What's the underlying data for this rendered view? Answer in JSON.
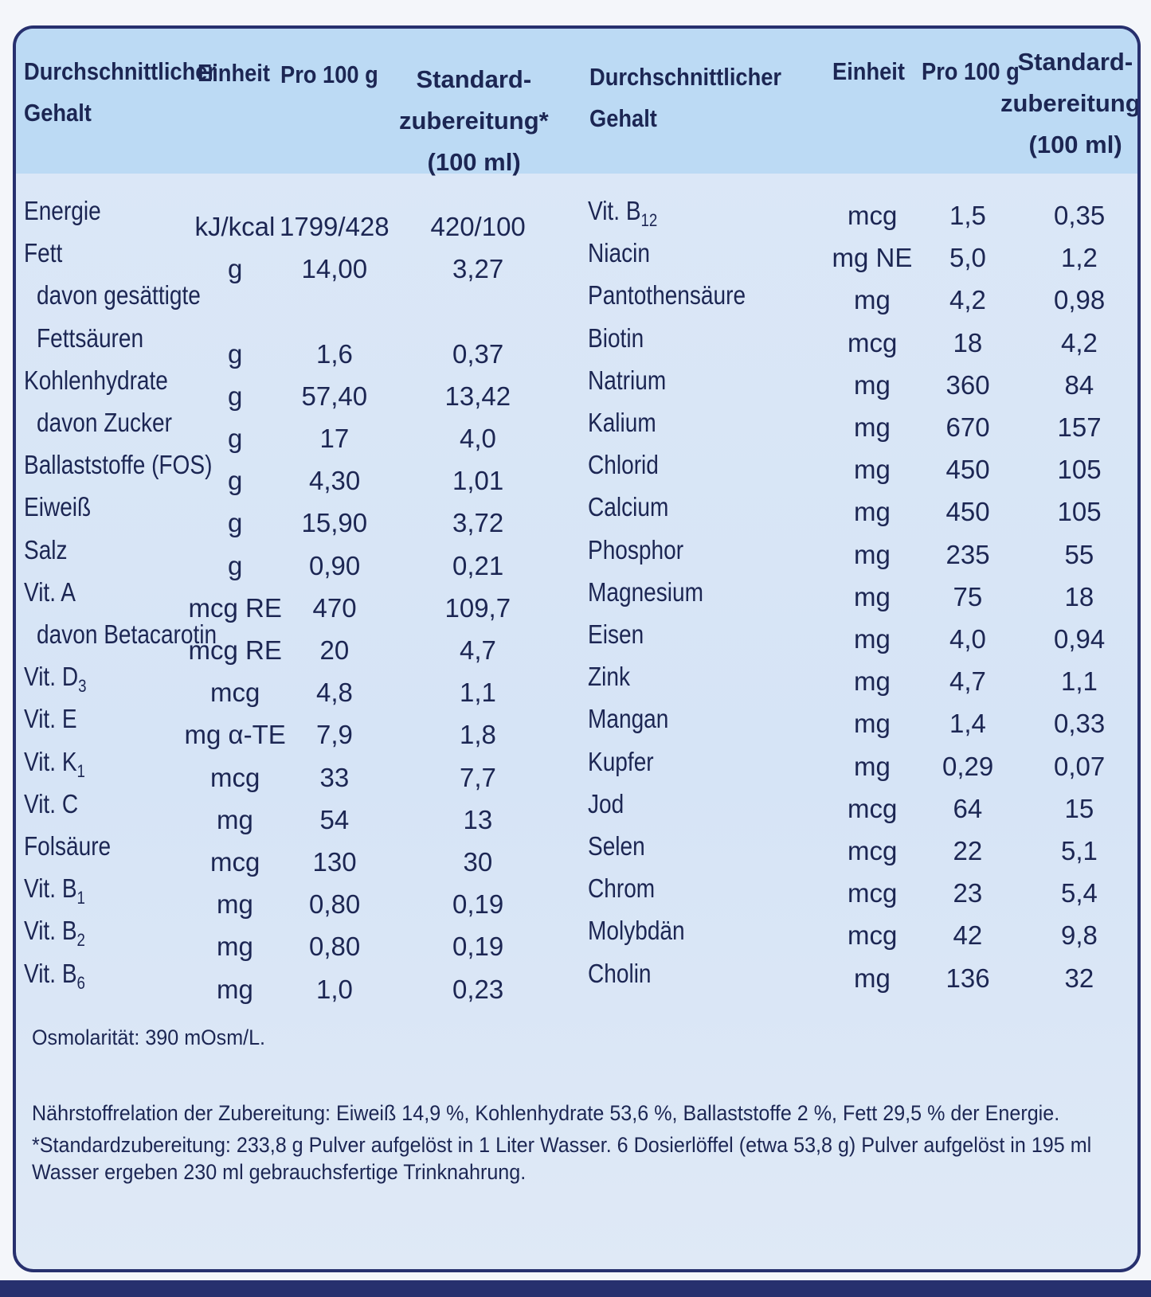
{
  "header": {
    "left": {
      "gehalt": [
        "Durchschnittlicher",
        "Gehalt"
      ],
      "einheit": "Einheit",
      "pro100": "Pro 100 g",
      "standard": [
        "Standard-",
        "zubereitung*",
        "(100 ml)"
      ]
    },
    "right": {
      "gehalt": [
        "Durchschnittlicher",
        "Gehalt"
      ],
      "einheit": "Einheit",
      "pro100": "Pro 100 g",
      "standard": [
        "Standard-",
        "zubereitung*",
        "(100 ml)"
      ]
    }
  },
  "left_rows": [
    {
      "name": "Energie",
      "unit": "kJ/kcal",
      "pro100": "1799/428",
      "standard": "420/100"
    },
    {
      "name": "Fett",
      "unit": "g",
      "pro100": "14,00",
      "standard": "3,27"
    },
    {
      "name": "davon gesättigte",
      "indent": true
    },
    {
      "name": "Fettsäuren",
      "indent": true,
      "unit": "g",
      "pro100": "1,6",
      "standard": "0,37"
    },
    {
      "name": "Kohlenhydrate",
      "unit": "g",
      "pro100": "57,40",
      "standard": "13,42"
    },
    {
      "name": "davon Zucker",
      "indent": true,
      "unit": "g",
      "pro100": "17",
      "standard": "4,0"
    },
    {
      "name": "Ballaststoffe (FOS)",
      "unit": "g",
      "pro100": "4,30",
      "standard": "1,01"
    },
    {
      "name": "Eiweiß",
      "unit": "g",
      "pro100": "15,90",
      "standard": "3,72"
    },
    {
      "name": "Salz",
      "unit": "g",
      "pro100": "0,90",
      "standard": "0,21"
    },
    {
      "name": "Vit. A",
      "unit": "mcg RE",
      "pro100": "470",
      "standard": "109,7"
    },
    {
      "name": "davon Betacarotin",
      "indent": true,
      "unit": "mcg RE",
      "pro100": "20",
      "standard": "4,7"
    },
    {
      "name": "Vit. D",
      "sub": "3",
      "unit": "mcg",
      "pro100": "4,8",
      "standard": "1,1"
    },
    {
      "name": "Vit. E",
      "unit": "mg α-TE",
      "pro100": "7,9",
      "standard": "1,8"
    },
    {
      "name": "Vit. K",
      "sub": "1",
      "unit": "mcg",
      "pro100": "33",
      "standard": "7,7"
    },
    {
      "name": "Vit. C",
      "unit": "mg",
      "pro100": "54",
      "standard": "13"
    },
    {
      "name": "Folsäure",
      "unit": "mcg",
      "pro100": "130",
      "standard": "30"
    },
    {
      "name": "Vit. B",
      "sub": "1",
      "unit": "mg",
      "pro100": "0,80",
      "standard": "0,19"
    },
    {
      "name": "Vit. B",
      "sub": "2",
      "unit": "mg",
      "pro100": "0,80",
      "standard": "0,19"
    },
    {
      "name": "Vit. B",
      "sub": "6",
      "unit": "mg",
      "pro100": "1,0",
      "standard": "0,23"
    }
  ],
  "right_rows": [
    {
      "name": "Vit. B",
      "sub": "12",
      "unit": "mcg",
      "pro100": "1,5",
      "standard": "0,35"
    },
    {
      "name": "Niacin",
      "unit": "mg NE",
      "pro100": "5,0",
      "standard": "1,2"
    },
    {
      "name": "Pantothensäure",
      "unit": "mg",
      "pro100": "4,2",
      "standard": "0,98"
    },
    {
      "name": "Biotin",
      "unit": "mcg",
      "pro100": "18",
      "standard": "4,2"
    },
    {
      "name": "Natrium",
      "unit": "mg",
      "pro100": "360",
      "standard": "84"
    },
    {
      "name": "Kalium",
      "unit": "mg",
      "pro100": "670",
      "standard": "157"
    },
    {
      "name": "Chlorid",
      "unit": "mg",
      "pro100": "450",
      "standard": "105"
    },
    {
      "name": "Calcium",
      "unit": "mg",
      "pro100": "450",
      "standard": "105"
    },
    {
      "name": "Phosphor",
      "unit": "mg",
      "pro100": "235",
      "standard": "55"
    },
    {
      "name": "Magnesium",
      "unit": "mg",
      "pro100": "75",
      "standard": "18"
    },
    {
      "name": "Eisen",
      "unit": "mg",
      "pro100": "4,0",
      "standard": "0,94"
    },
    {
      "name": "Zink",
      "unit": "mg",
      "pro100": "4,7",
      "standard": "1,1"
    },
    {
      "name": "Mangan",
      "unit": "mg",
      "pro100": "1,4",
      "standard": "0,33"
    },
    {
      "name": "Kupfer",
      "unit": "mg",
      "pro100": "0,29",
      "standard": "0,07"
    },
    {
      "name": "Jod",
      "unit": "mcg",
      "pro100": "64",
      "standard": "15"
    },
    {
      "name": "Selen",
      "unit": "mcg",
      "pro100": "22",
      "standard": "5,1"
    },
    {
      "name": "Chrom",
      "unit": "mcg",
      "pro100": "23",
      "standard": "5,4"
    },
    {
      "name": "Molybdän",
      "unit": "mcg",
      "pro100": "42",
      "standard": "9,8"
    },
    {
      "name": "Cholin",
      "unit": "mg",
      "pro100": "136",
      "standard": "32"
    }
  ],
  "footer": {
    "osmolaritaet": "Osmolarität: 390 mOsm/L.",
    "naehrstoffrelation": "Nährstoffrelation der Zubereitung: Eiweiß 14,9 %, Kohlenhydrate 53,6 %, Ballaststoffe 2 %, Fett 29,5 % der Energie.",
    "standardzubereitung": "*Standardzubereitung: 233,8 g Pulver aufgelöst in 1 Liter Wasser. 6 Dosierlöffel (etwa 53,8 g) Pulver aufgelöst in 195 ml Wasser ergeben 230 ml gebrauchsfertige Trinknahrung."
  }
}
